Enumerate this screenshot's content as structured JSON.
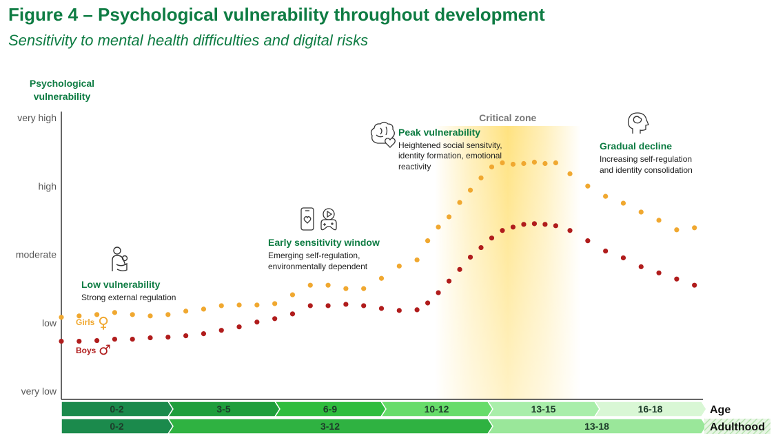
{
  "figure": {
    "title": "Figure 4 – Psychological vulnerability throughout development",
    "subtitle": "Sensitivity to mental health difficulties and digital risks"
  },
  "chart_data": {
    "type": "scatter",
    "title": "Figure 4 – Psychological vulnerability throughout development",
    "subtitle": "Sensitivity to mental health difficulties and digital risks",
    "ylabel": "Psychological vulnerability",
    "y_ticks": [
      "very low",
      "low",
      "moderate",
      "high",
      "very high"
    ],
    "ylim": [
      0,
      4
    ],
    "xlim": [
      0,
      18
    ],
    "grid": false,
    "legend": "left, inside plot",
    "series": [
      {
        "name": "Girls",
        "color": "#f0a830",
        "x": [
          0.0,
          0.5,
          1.0,
          1.5,
          2.0,
          2.5,
          3.0,
          3.5,
          4.0,
          4.5,
          5.0,
          5.5,
          6.0,
          6.5,
          7.0,
          7.5,
          8.0,
          8.5,
          9.0,
          9.5,
          10.0,
          10.3,
          10.6,
          10.9,
          11.2,
          11.5,
          11.8,
          12.1,
          12.4,
          12.7,
          13.0,
          13.3,
          13.6,
          13.9,
          14.3,
          14.8,
          15.3,
          15.8,
          16.3,
          16.8,
          17.3,
          17.8
        ],
        "y": [
          1.08,
          1.1,
          1.12,
          1.15,
          1.12,
          1.1,
          1.12,
          1.17,
          1.2,
          1.25,
          1.26,
          1.26,
          1.28,
          1.41,
          1.55,
          1.55,
          1.5,
          1.5,
          1.65,
          1.83,
          1.92,
          2.2,
          2.4,
          2.55,
          2.76,
          2.94,
          3.12,
          3.28,
          3.34,
          3.32,
          3.33,
          3.35,
          3.33,
          3.34,
          3.18,
          3.0,
          2.85,
          2.75,
          2.62,
          2.5,
          2.36,
          2.39
        ]
      },
      {
        "name": "Boys",
        "color": "#b01c1c",
        "x": [
          0.0,
          0.5,
          1.0,
          1.5,
          2.0,
          2.5,
          3.0,
          3.5,
          4.0,
          4.5,
          5.0,
          5.5,
          6.0,
          6.5,
          7.0,
          7.5,
          8.0,
          8.5,
          9.0,
          9.5,
          10.0,
          10.3,
          10.6,
          10.9,
          11.2,
          11.5,
          11.8,
          12.1,
          12.4,
          12.7,
          13.0,
          13.3,
          13.6,
          13.9,
          14.3,
          14.8,
          15.3,
          15.8,
          16.3,
          16.8,
          17.3,
          17.8
        ],
        "y": [
          0.73,
          0.73,
          0.74,
          0.76,
          0.76,
          0.78,
          0.79,
          0.81,
          0.84,
          0.89,
          0.94,
          1.01,
          1.06,
          1.13,
          1.25,
          1.25,
          1.27,
          1.25,
          1.21,
          1.18,
          1.19,
          1.29,
          1.44,
          1.61,
          1.78,
          1.96,
          2.1,
          2.24,
          2.35,
          2.4,
          2.44,
          2.45,
          2.44,
          2.42,
          2.35,
          2.2,
          2.05,
          1.95,
          1.82,
          1.73,
          1.64,
          1.55
        ]
      }
    ],
    "legend_entries": [
      {
        "label": "Girls",
        "symbol": "♀",
        "color": "#f0a830"
      },
      {
        "label": "Boys",
        "symbol": "♂",
        "color": "#b01c1c"
      }
    ],
    "critical_zone": {
      "label": "Critical zone",
      "from_age": 10.5,
      "to_age": 14.6
    },
    "annotations": [
      {
        "title": "Low vulnerability",
        "lines": [
          "Strong external regulation"
        ],
        "icon": "parent-child-icon"
      },
      {
        "title": "Early sensitivity window",
        "lines": [
          "Emerging self-regulation,",
          "environmentally dependent"
        ],
        "icon": "phone-media-gamepad-icon"
      },
      {
        "title": "Peak vulnerability",
        "lines": [
          "Heightened social sensitvity,",
          "identity formation, emotional",
          "reactivity"
        ],
        "icon": "brain-heart-icon"
      },
      {
        "title": "Gradual decline",
        "lines": [
          "Increasing self-regulation",
          "and identity consolidation"
        ],
        "icon": "head-brain-icon"
      }
    ],
    "age_row": {
      "label": "Age",
      "segments": [
        {
          "label": "0-2",
          "color": "#1b8a4c"
        },
        {
          "label": "3-5",
          "color": "#1f9e3c"
        },
        {
          "label": "6-9",
          "color": "#2fbd3e"
        },
        {
          "label": "10-12",
          "color": "#67dc6a"
        },
        {
          "label": "13-15",
          "color": "#a9eeaa"
        },
        {
          "label": "16-18",
          "color": "#d9f7d5"
        }
      ]
    },
    "stage_row": {
      "label": "Adulthood",
      "segments": [
        {
          "label": "0-2",
          "color": "#1b8a4c"
        },
        {
          "label": "3-12",
          "color": "#2fb241"
        },
        {
          "label": "13-18",
          "color": "#9ae79a"
        }
      ]
    }
  }
}
